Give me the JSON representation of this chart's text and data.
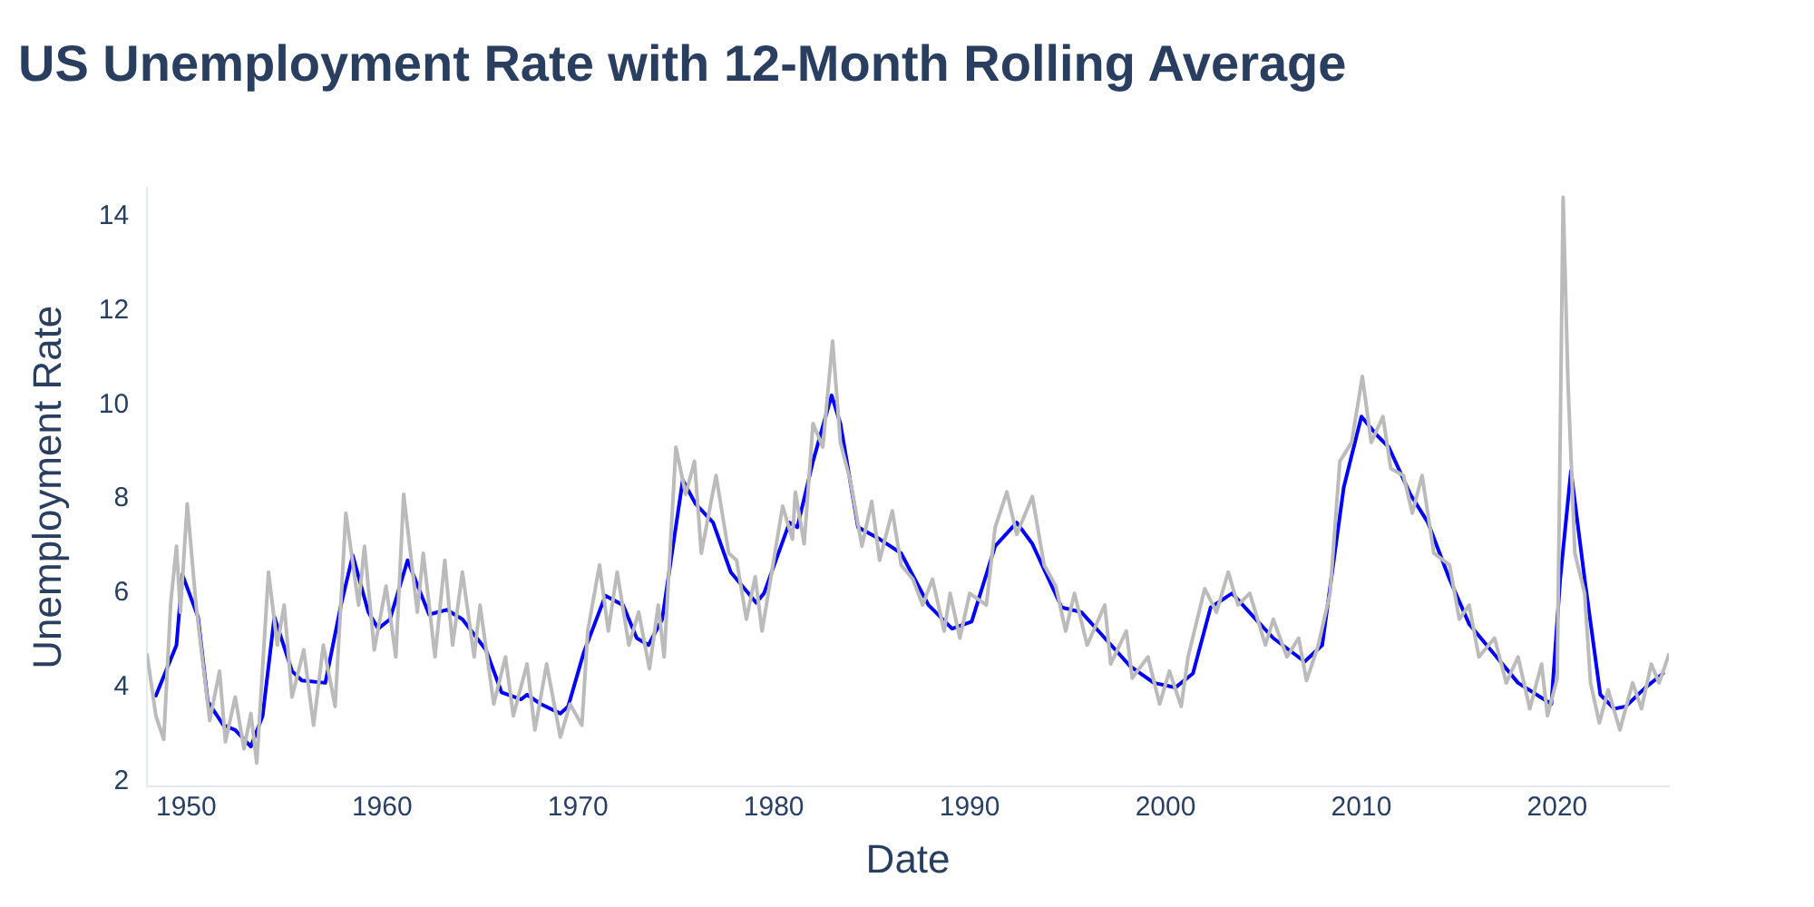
{
  "chart_data": {
    "type": "line",
    "title": "US Unemployment Rate with 12-Month Rolling Average",
    "xlabel": "Date",
    "ylabel": "Unemployment Rate",
    "xlim": [
      1948,
      2025.7
    ],
    "xticks": [
      1950,
      1960,
      1970,
      1980,
      1990,
      2000,
      2010,
      2020
    ],
    "ylim": [
      1.9,
      14.6
    ],
    "yticks": [
      2,
      4,
      6,
      8,
      10,
      12,
      14
    ],
    "marker": "none",
    "series": [
      {
        "color": "#bbbbbb",
        "x": [
          1948.0,
          1948.45,
          1948.85,
          1949.2,
          1949.5,
          1949.7,
          1950.05,
          1950.5,
          1950.9,
          1951.2,
          1951.7,
          1952.0,
          1952.5,
          1952.95,
          1953.3,
          1953.6,
          1954.2,
          1954.65,
          1955.0,
          1955.4,
          1956.0,
          1956.5,
          1957.0,
          1957.6,
          1958.15,
          1958.8,
          1959.1,
          1959.6,
          1960.2,
          1960.7,
          1961.1,
          1961.8,
          1962.1,
          1962.7,
          1963.2,
          1963.6,
          1964.1,
          1964.7,
          1965.0,
          1965.7,
          1966.3,
          1966.7,
          1967.4,
          1967.8,
          1968.4,
          1969.1,
          1969.6,
          1970.2,
          1970.5,
          1971.1,
          1971.55,
          1972.0,
          1972.6,
          1973.1,
          1973.65,
          1974.1,
          1974.4,
          1975.0,
          1975.5,
          1975.95,
          1976.3,
          1977.05,
          1977.7,
          1978.1,
          1978.6,
          1979.05,
          1979.4,
          1980.45,
          1980.95,
          1981.1,
          1981.55,
          1982.0,
          1982.5,
          1983.0,
          1983.4,
          1983.9,
          1984.5,
          1985.0,
          1985.4,
          1986.05,
          1986.5,
          1987.1,
          1987.6,
          1988.1,
          1988.7,
          1989.0,
          1989.5,
          1990.0,
          1990.85,
          1991.3,
          1991.9,
          1992.4,
          1993.2,
          1993.8,
          1994.4,
          1994.9,
          1995.35,
          1996.0,
          1996.9,
          1997.2,
          1998.0,
          1998.3,
          1999.1,
          1999.7,
          2000.2,
          2000.8,
          2001.15,
          2002.0,
          2002.6,
          2003.2,
          2003.7,
          2004.3,
          2005.1,
          2005.5,
          2006.2,
          2006.8,
          2007.2,
          2007.8,
          2008.4,
          2008.9,
          2009.5,
          2010.05,
          2010.5,
          2011.1,
          2011.5,
          2012.15,
          2012.6,
          2013.1,
          2013.7,
          2014.5,
          2015.0,
          2015.5,
          2016.0,
          2016.8,
          2017.4,
          2018.0,
          2018.6,
          2019.2,
          2019.5,
          2020.0,
          2020.3,
          2020.55,
          2020.9,
          2021.4,
          2021.7,
          2022.15,
          2022.6,
          2023.2,
          2023.85,
          2024.3,
          2024.8,
          2025.2,
          2025.7
        ],
        "values": [
          4.7,
          3.4,
          2.9,
          5.75,
          7.0,
          5.6,
          7.9,
          5.75,
          4.35,
          3.3,
          4.35,
          2.85,
          3.8,
          2.7,
          3.45,
          2.4,
          6.45,
          4.9,
          5.75,
          3.8,
          4.8,
          3.2,
          4.9,
          3.6,
          7.7,
          5.75,
          7.0,
          4.8,
          6.15,
          4.65,
          8.1,
          5.6,
          6.85,
          4.65,
          6.7,
          4.9,
          6.45,
          4.65,
          5.75,
          3.65,
          4.65,
          3.4,
          4.5,
          3.1,
          4.5,
          2.95,
          3.65,
          3.2,
          5.2,
          6.6,
          5.2,
          6.45,
          4.9,
          5.6,
          4.4,
          5.75,
          4.65,
          9.1,
          8.1,
          8.8,
          6.85,
          8.5,
          6.85,
          6.7,
          5.45,
          6.35,
          5.2,
          7.85,
          7.15,
          8.15,
          7.05,
          9.6,
          9.1,
          11.35,
          9.2,
          8.4,
          7.0,
          7.95,
          6.7,
          7.75,
          6.6,
          6.3,
          5.75,
          6.3,
          5.2,
          6.0,
          5.05,
          6.0,
          5.75,
          7.4,
          8.15,
          7.25,
          8.05,
          6.6,
          6.15,
          5.2,
          6.0,
          4.9,
          5.75,
          4.5,
          5.2,
          4.2,
          4.65,
          3.65,
          4.35,
          3.6,
          4.65,
          6.1,
          5.6,
          6.45,
          5.75,
          6.0,
          4.9,
          5.45,
          4.65,
          5.05,
          4.15,
          4.9,
          6.0,
          8.8,
          9.2,
          10.6,
          9.2,
          9.75,
          8.65,
          8.5,
          7.7,
          8.5,
          6.85,
          6.6,
          5.45,
          5.75,
          4.65,
          5.05,
          4.1,
          4.65,
          3.55,
          4.5,
          3.4,
          4.2,
          14.4,
          10.45,
          6.85,
          6.0,
          4.1,
          3.25,
          3.95,
          3.1,
          4.1,
          3.55,
          4.5,
          4.1,
          4.7
        ]
      },
      {
        "color": "#0000ff",
        "x": [
          1948.45,
          1949.5,
          1949.8,
          1950.6,
          1951.1,
          1951.9,
          1952.5,
          1953.3,
          1953.9,
          1954.5,
          1955.4,
          1955.9,
          1957.1,
          1957.9,
          1958.5,
          1959.3,
          1959.8,
          1960.4,
          1961.3,
          1962.4,
          1963.3,
          1964.1,
          1965.3,
          1966.1,
          1967.1,
          1967.4,
          1968.1,
          1969.1,
          1969.5,
          1970.3,
          1971.4,
          1972.3,
          1973.0,
          1973.6,
          1974.3,
          1975.35,
          1976.0,
          1976.9,
          1977.8,
          1979.1,
          1979.5,
          1980.8,
          1981.2,
          1982.0,
          1982.95,
          1983.4,
          1984.3,
          1985.4,
          1986.5,
          1987.9,
          1989.1,
          1990.1,
          1991.3,
          1992.4,
          1993.2,
          1994.7,
          1995.7,
          1996.9,
          1998.2,
          1999.4,
          2000.5,
          2001.4,
          2002.3,
          2003.4,
          2004.6,
          2005.5,
          2007.1,
          2008.0,
          2009.1,
          2010.0,
          2010.8,
          2011.4,
          2012.5,
          2013.4,
          2014.5,
          2015.5,
          2016.6,
          2018.0,
          2019.7,
          2020.15,
          2020.7,
          2021.4,
          2022.2,
          2022.9,
          2023.5,
          2024.5,
          2025.4
        ],
        "values": [
          3.83,
          4.9,
          6.4,
          5.5,
          3.7,
          3.2,
          3.1,
          2.75,
          3.4,
          5.5,
          4.35,
          4.15,
          4.1,
          5.75,
          6.8,
          5.6,
          5.25,
          5.45,
          6.7,
          5.55,
          5.65,
          5.45,
          4.8,
          3.9,
          3.75,
          3.85,
          3.65,
          3.45,
          3.6,
          4.75,
          5.95,
          5.75,
          5.05,
          4.9,
          5.45,
          8.4,
          7.9,
          7.5,
          6.45,
          5.8,
          6.0,
          7.5,
          7.4,
          8.8,
          10.2,
          9.6,
          7.4,
          7.15,
          6.85,
          5.75,
          5.25,
          5.4,
          7.0,
          7.5,
          7.05,
          5.7,
          5.6,
          5.05,
          4.45,
          4.1,
          4.0,
          4.3,
          5.7,
          6.0,
          5.45,
          5.05,
          4.55,
          4.9,
          8.25,
          9.75,
          9.35,
          9.1,
          8.1,
          7.5,
          6.3,
          5.35,
          4.8,
          4.1,
          3.65,
          6.3,
          8.6,
          6.3,
          3.85,
          3.55,
          3.6,
          4.0,
          4.3
        ]
      }
    ]
  }
}
